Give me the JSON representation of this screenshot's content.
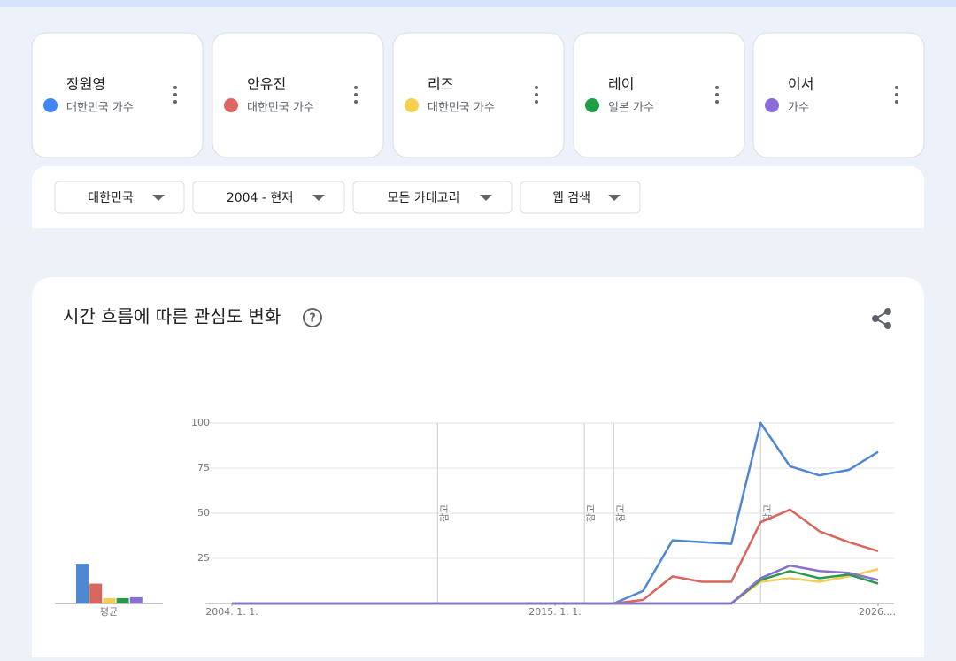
{
  "terms": [
    {
      "name": "장원영",
      "desc": "대한민국 가수",
      "color": "#4285f4"
    },
    {
      "name": "안유진",
      "desc": "대한민국 가수",
      "color": "#e06666"
    },
    {
      "name": "리즈",
      "desc": "대한민국 가수",
      "color": "#f6cf4e"
    },
    {
      "name": "레이",
      "desc": "일본 가수",
      "color": "#1e9e46"
    },
    {
      "name": "이서",
      "desc": "가수",
      "color": "#8a6cd6"
    }
  ],
  "filters": [
    "대한민국",
    "2004 - 현재",
    "모든 카테고리",
    "웹 검색"
  ],
  "card_title": "시간 흐름에 따른 관심도 변화",
  "chart_data": [
    {
      "type": "bar",
      "categories": [
        "평균"
      ],
      "ylim": [
        0,
        100
      ],
      "series": [
        {
          "color": "#4f87d4",
          "values": [
            22
          ]
        },
        {
          "color": "#d9665d",
          "values": [
            11
          ]
        },
        {
          "color": "#f2cd55",
          "values": [
            3
          ]
        },
        {
          "color": "#2a9a4a",
          "values": [
            3
          ]
        },
        {
          "color": "#8b6fd0",
          "values": [
            3.5
          ]
        }
      ]
    },
    {
      "type": "line",
      "x": [
        2004,
        2005,
        2006,
        2007,
        2008,
        2009,
        2010,
        2011,
        2012,
        2013,
        2014,
        2015,
        2016,
        2017,
        2018,
        2019,
        2020,
        2021,
        2022,
        2023,
        2024,
        2025,
        2026
      ],
      "xlim": [
        2004,
        2026
      ],
      "xticks": [
        {
          "value": 2004,
          "label": "2004. 1. 1."
        },
        {
          "value": 2015,
          "label": "2015. 1. 1."
        },
        {
          "value": 2026,
          "label": "2026...."
        }
      ],
      "ylim": [
        0,
        100
      ],
      "yticks": [
        25,
        50,
        75,
        100
      ],
      "grid": true,
      "annotations": [
        {
          "x": 2011,
          "label": "참고"
        },
        {
          "x": 2016,
          "label": "참고"
        },
        {
          "x": 2017,
          "label": "참고"
        },
        {
          "x": 2022,
          "label": "참고"
        }
      ],
      "series": [
        {
          "color": "#4f87d4",
          "values": [
            0,
            0,
            0,
            0,
            0,
            0,
            0,
            0,
            0,
            0,
            0,
            0,
            0,
            0,
            7,
            35,
            34,
            33,
            100,
            76,
            71,
            74,
            84
          ]
        },
        {
          "color": "#d9665d",
          "values": [
            0,
            0,
            0,
            0,
            0,
            0,
            0,
            0,
            0,
            0,
            0,
            0,
            0,
            0,
            2,
            15,
            12,
            12,
            45,
            52,
            40,
            34,
            29
          ]
        },
        {
          "color": "#f2cd55",
          "values": [
            0,
            0,
            0,
            0,
            0,
            0,
            0,
            0,
            0,
            0,
            0,
            0,
            0,
            0,
            0,
            0,
            0,
            0,
            12,
            14,
            12,
            15,
            19
          ]
        },
        {
          "color": "#2a9a4a",
          "values": [
            0,
            0,
            0,
            0,
            0,
            0,
            0,
            0,
            0,
            0,
            0,
            0,
            0,
            0,
            0,
            0,
            0,
            0,
            13,
            18,
            14,
            16,
            11
          ]
        },
        {
          "color": "#8b6fd0",
          "values": [
            0,
            0,
            0,
            0,
            0,
            0,
            0,
            0,
            0,
            0,
            0,
            0,
            0,
            0,
            0,
            0,
            0,
            0,
            14,
            21,
            18,
            17,
            13
          ]
        }
      ]
    }
  ]
}
